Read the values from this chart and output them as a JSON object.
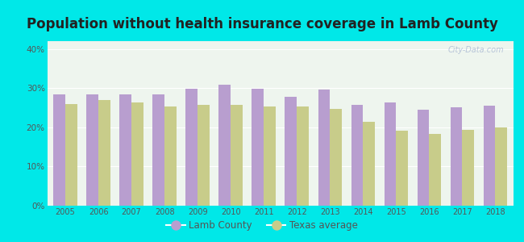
{
  "title": "Population without health insurance coverage in Lamb County",
  "years": [
    2005,
    2006,
    2007,
    2008,
    2009,
    2010,
    2011,
    2012,
    2013,
    2014,
    2015,
    2016,
    2017,
    2018
  ],
  "lamb_county": [
    0.285,
    0.284,
    0.284,
    0.285,
    0.298,
    0.308,
    0.298,
    0.277,
    0.297,
    0.257,
    0.263,
    0.246,
    0.251,
    0.256
  ],
  "texas_avg": [
    0.259,
    0.27,
    0.264,
    0.254,
    0.258,
    0.258,
    0.254,
    0.253,
    0.248,
    0.215,
    0.192,
    0.183,
    0.193,
    0.2
  ],
  "lamb_color": "#b89ecf",
  "texas_color": "#c8cc8a",
  "background_outer": "#00e8e8",
  "background_inner": "#eef5ee",
  "title_fontsize": 12,
  "ylabel_ticks": [
    0,
    0.1,
    0.2,
    0.3,
    0.4
  ],
  "ylabel_labels": [
    "0%",
    "10%",
    "20%",
    "30%",
    "40%"
  ],
  "legend_lamb": "Lamb County",
  "legend_texas": "Texas average",
  "watermark": "City-Data.com",
  "tick_color": "#555555",
  "title_color": "#222222"
}
